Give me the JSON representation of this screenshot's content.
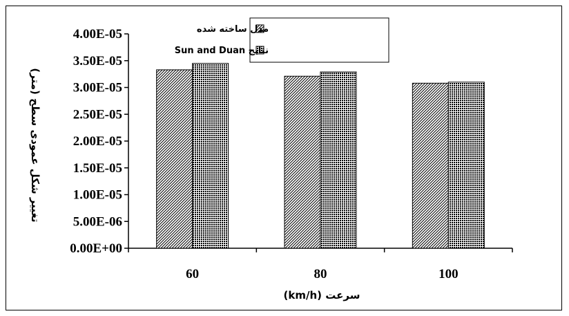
{
  "chart_data": {
    "type": "bar",
    "categories": [
      "60",
      "80",
      "100"
    ],
    "series": [
      {
        "name": "مدل ساخته شده",
        "values": [
          3.33e-05,
          3.21e-05,
          3.08e-05
        ],
        "pattern": "diagonal-hatch"
      },
      {
        "name": "نتایج Sun and Duan",
        "values": [
          3.45e-05,
          3.29e-05,
          3.1e-05
        ],
        "pattern": "dense-dots"
      }
    ],
    "title": "",
    "xlabel": "سرعت (km/h)",
    "ylabel": "تغییر شکل عمودی سطح (متر)",
    "ylim": [
      0,
      4e-05
    ],
    "yticks": [
      "0.00E+00",
      "5.00E-06",
      "1.00E-05",
      "1.50E-05",
      "2.00E-05",
      "2.50E-05",
      "3.00E-05",
      "3.50E-05",
      "4.00E-05"
    ],
    "grid": false,
    "legend": "top-center"
  }
}
